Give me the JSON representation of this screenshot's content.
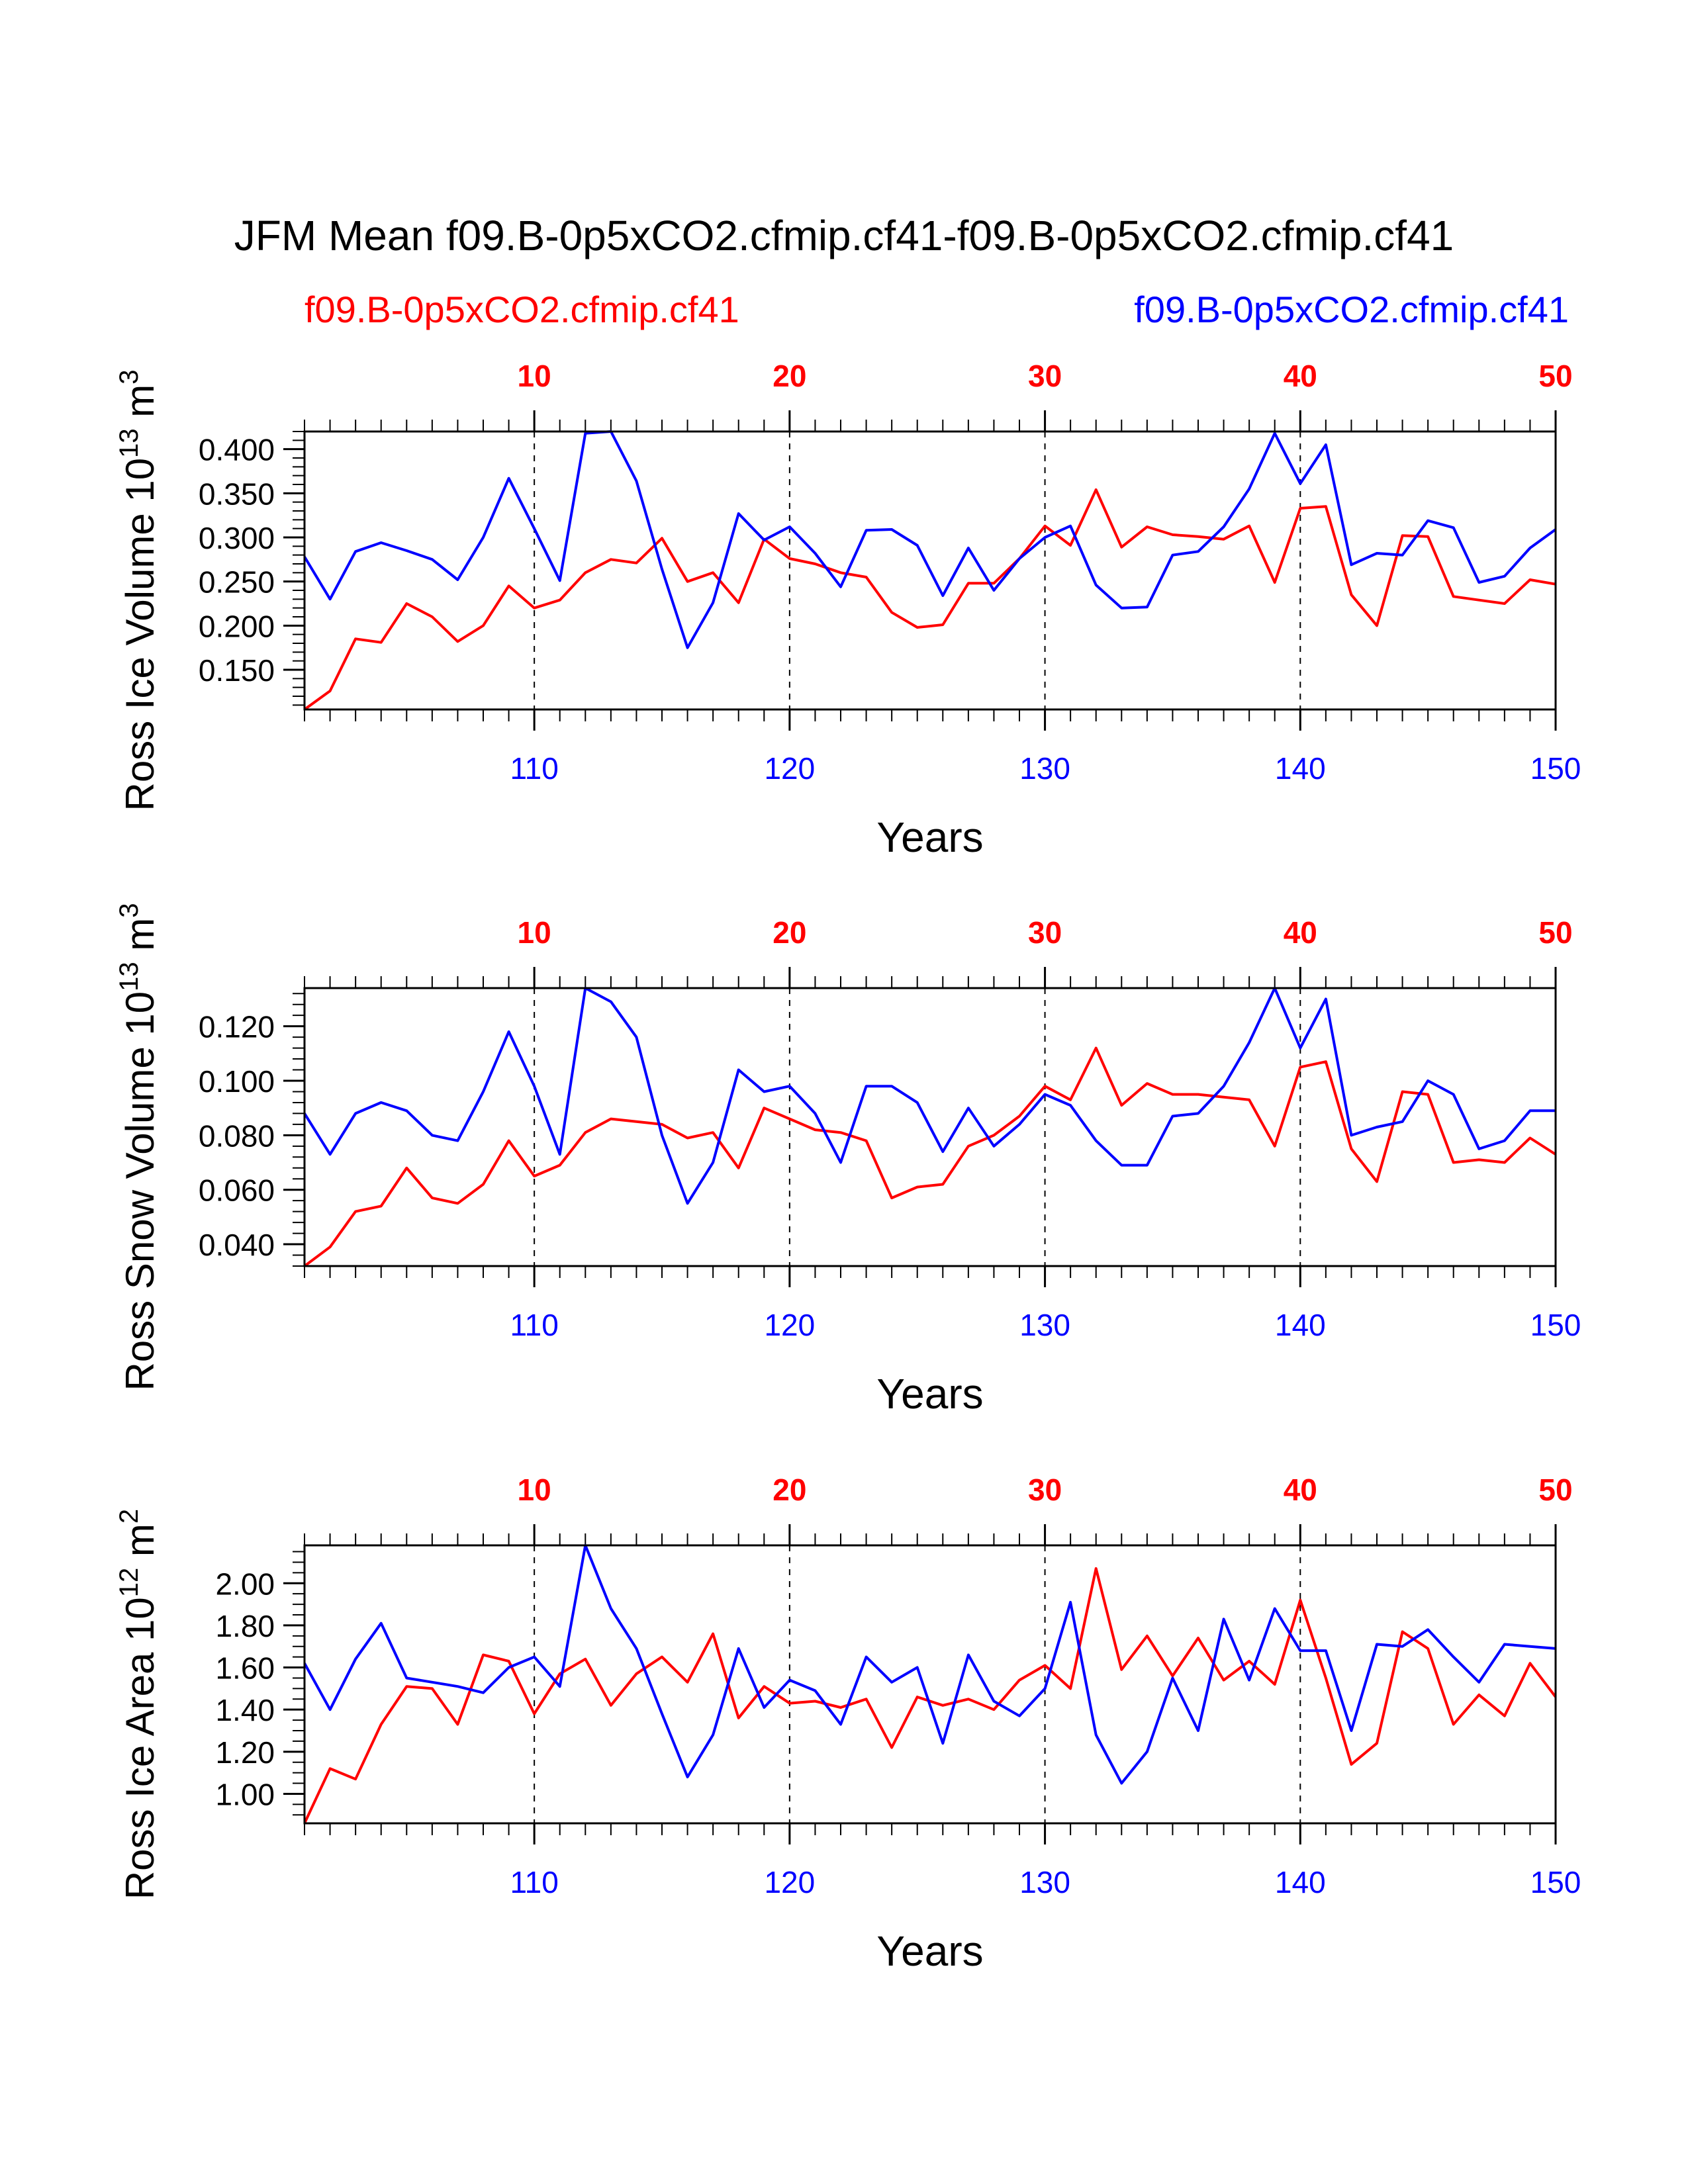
{
  "title": "JFM Mean f09.B-0p5xCO2.cfmip.cf41-f09.B-0p5xCO2.cfmip.cf41",
  "legend": {
    "left_label": "f09.B-0p5xCO2.cfmip.cf41",
    "left_color": "#ff0000",
    "right_label": "f09.B-0p5xCO2.cfmip.cf41",
    "right_color": "#0000ff"
  },
  "chart_data": [
    {
      "type": "line",
      "ylabel": "Ross Ice Volume 10",
      "ylabel_exp": "13",
      "ylabel_unit": " m",
      "ylabel_unit_exp": "3",
      "xlabel": "Years",
      "ylim": [
        0.105,
        0.42
      ],
      "yticks": [
        0.15,
        0.2,
        0.25,
        0.3,
        0.35,
        0.4
      ],
      "ytick_labels": [
        "0.150",
        "0.200",
        "0.250",
        "0.300",
        "0.350",
        "0.400"
      ],
      "yminor_step": 0.01,
      "xlim_bottom": [
        101,
        150
      ],
      "bottom_ticks": [
        110,
        120,
        130,
        140,
        150
      ],
      "bottom_tick_labels": [
        "110",
        "120",
        "130",
        "140",
        "150"
      ],
      "top_ticks": [
        10,
        20,
        30,
        40,
        50
      ],
      "top_tick_labels": [
        "10",
        "20",
        "30",
        "40",
        "50"
      ],
      "series": [
        {
          "name": "f09.B-0p5xCO2.cfmip.cf41",
          "axis": "top",
          "color": "#ff0000",
          "x": [
            1,
            2,
            3,
            4,
            5,
            6,
            7,
            8,
            9,
            10,
            11,
            12,
            13,
            14,
            15,
            16,
            17,
            18,
            19,
            20,
            21,
            22,
            23,
            24,
            25,
            26,
            27,
            28,
            29,
            30,
            31,
            32,
            33,
            34,
            35,
            36,
            37,
            38,
            39,
            40,
            41,
            42,
            43,
            44,
            45,
            46,
            47,
            48,
            49,
            50
          ],
          "values": [
            0.105,
            0.126,
            0.185,
            0.181,
            0.225,
            0.21,
            0.182,
            0.2,
            0.245,
            0.22,
            0.229,
            0.26,
            0.275,
            0.271,
            0.299,
            0.25,
            0.26,
            0.226,
            0.298,
            0.276,
            0.27,
            0.26,
            0.255,
            0.215,
            0.198,
            0.201,
            0.248,
            0.248,
            0.276,
            0.313,
            0.291,
            0.354,
            0.289,
            0.312,
            0.303,
            0.301,
            0.298,
            0.313,
            0.249,
            0.333,
            0.335,
            0.235,
            0.2,
            0.302,
            0.301,
            0.233,
            0.229,
            0.225,
            0.252,
            0.247
          ]
        },
        {
          "name": "f09.B-0p5xCO2.cfmip.cf41",
          "axis": "bottom",
          "color": "#0000ff",
          "x": [
            101,
            102,
            103,
            104,
            105,
            106,
            107,
            108,
            109,
            110,
            111,
            112,
            113,
            114,
            115,
            116,
            117,
            118,
            119,
            120,
            121,
            122,
            123,
            124,
            125,
            126,
            127,
            128,
            129,
            130,
            131,
            132,
            133,
            134,
            135,
            136,
            137,
            138,
            139,
            140,
            141,
            142,
            143,
            144,
            145,
            146,
            147,
            148,
            149,
            150
          ],
          "values": [
            0.278,
            0.23,
            0.284,
            0.294,
            0.285,
            0.275,
            0.252,
            0.3,
            0.367,
            0.31,
            0.251,
            0.418,
            0.42,
            0.364,
            0.264,
            0.175,
            0.226,
            0.327,
            0.297,
            0.312,
            0.282,
            0.244,
            0.308,
            0.309,
            0.291,
            0.234,
            0.288,
            0.24,
            0.276,
            0.3,
            0.313,
            0.246,
            0.22,
            0.221,
            0.28,
            0.284,
            0.312,
            0.355,
            0.418,
            0.361,
            0.405,
            0.269,
            0.282,
            0.28,
            0.319,
            0.311,
            0.249,
            0.256,
            0.288,
            0.309
          ]
        }
      ]
    },
    {
      "type": "line",
      "ylabel": "Ross Snow Volume 10",
      "ylabel_exp": "13",
      "ylabel_unit": " m",
      "ylabel_unit_exp": "3",
      "xlabel": "Years",
      "ylim": [
        0.032,
        0.134
      ],
      "yticks": [
        0.04,
        0.06,
        0.08,
        0.1,
        0.12
      ],
      "ytick_labels": [
        "0.040",
        "0.060",
        "0.080",
        "0.100",
        "0.120"
      ],
      "yminor_step": 0.004,
      "xlim_bottom": [
        101,
        150
      ],
      "bottom_ticks": [
        110,
        120,
        130,
        140,
        150
      ],
      "bottom_tick_labels": [
        "110",
        "120",
        "130",
        "140",
        "150"
      ],
      "top_ticks": [
        10,
        20,
        30,
        40,
        50
      ],
      "top_tick_labels": [
        "10",
        "20",
        "30",
        "40",
        "50"
      ],
      "series": [
        {
          "name": "f09.B-0p5xCO2.cfmip.cf41",
          "axis": "top",
          "color": "#ff0000",
          "x": [
            1,
            2,
            3,
            4,
            5,
            6,
            7,
            8,
            9,
            10,
            11,
            12,
            13,
            14,
            15,
            16,
            17,
            18,
            19,
            20,
            21,
            22,
            23,
            24,
            25,
            26,
            27,
            28,
            29,
            30,
            31,
            32,
            33,
            34,
            35,
            36,
            37,
            38,
            39,
            40,
            41,
            42,
            43,
            44,
            45,
            46,
            47,
            48,
            49,
            50
          ],
          "values": [
            0.032,
            0.039,
            0.052,
            0.054,
            0.068,
            0.057,
            0.055,
            0.062,
            0.078,
            0.065,
            0.069,
            0.081,
            0.086,
            0.085,
            0.084,
            0.079,
            0.081,
            0.068,
            0.09,
            0.086,
            0.082,
            0.081,
            0.078,
            0.057,
            0.061,
            0.062,
            0.076,
            0.08,
            0.087,
            0.098,
            0.093,
            0.112,
            0.091,
            0.099,
            0.095,
            0.095,
            0.094,
            0.093,
            0.076,
            0.105,
            0.107,
            0.075,
            0.063,
            0.096,
            0.095,
            0.07,
            0.071,
            0.07,
            0.079,
            0.073
          ]
        },
        {
          "name": "f09.B-0p5xCO2.cfmip.cf41",
          "axis": "bottom",
          "color": "#0000ff",
          "x": [
            101,
            102,
            103,
            104,
            105,
            106,
            107,
            108,
            109,
            110,
            111,
            112,
            113,
            114,
            115,
            116,
            117,
            118,
            119,
            120,
            121,
            122,
            123,
            124,
            125,
            126,
            127,
            128,
            129,
            130,
            131,
            132,
            133,
            134,
            135,
            136,
            137,
            138,
            139,
            140,
            141,
            142,
            143,
            144,
            145,
            146,
            147,
            148,
            149,
            150
          ],
          "values": [
            0.088,
            0.073,
            0.088,
            0.092,
            0.089,
            0.08,
            0.078,
            0.096,
            0.118,
            0.098,
            0.073,
            0.134,
            0.129,
            0.116,
            0.08,
            0.055,
            0.07,
            0.104,
            0.096,
            0.098,
            0.088,
            0.07,
            0.098,
            0.098,
            0.092,
            0.074,
            0.09,
            0.076,
            0.084,
            0.095,
            0.091,
            0.078,
            0.069,
            0.069,
            0.087,
            0.088,
            0.098,
            0.114,
            0.134,
            0.112,
            0.13,
            0.08,
            0.083,
            0.085,
            0.1,
            0.095,
            0.075,
            0.078,
            0.089,
            0.089
          ]
        }
      ]
    },
    {
      "type": "line",
      "ylabel": "Ross Ice Area 10",
      "ylabel_exp": "12",
      "ylabel_unit": " m",
      "ylabel_unit_exp": "2",
      "xlabel": "Years",
      "ylim": [
        0.86,
        2.18
      ],
      "yticks": [
        1.0,
        1.2,
        1.4,
        1.6,
        1.8,
        2.0
      ],
      "ytick_labels": [
        "1.00",
        "1.20",
        "1.40",
        "1.60",
        "1.80",
        "2.00"
      ],
      "yminor_step": 0.05,
      "xlim_bottom": [
        101,
        150
      ],
      "bottom_ticks": [
        110,
        120,
        130,
        140,
        150
      ],
      "bottom_tick_labels": [
        "110",
        "120",
        "130",
        "140",
        "150"
      ],
      "top_ticks": [
        10,
        20,
        30,
        40,
        50
      ],
      "top_tick_labels": [
        "10",
        "20",
        "30",
        "40",
        "50"
      ],
      "series": [
        {
          "name": "f09.B-0p5xCO2.cfmip.cf41",
          "axis": "top",
          "color": "#ff0000",
          "x": [
            1,
            2,
            3,
            4,
            5,
            6,
            7,
            8,
            9,
            10,
            11,
            12,
            13,
            14,
            15,
            16,
            17,
            18,
            19,
            20,
            21,
            22,
            23,
            24,
            25,
            26,
            27,
            28,
            29,
            30,
            31,
            32,
            33,
            34,
            35,
            36,
            37,
            38,
            39,
            40,
            41,
            42,
            43,
            44,
            45,
            46,
            47,
            48,
            49,
            50
          ],
          "values": [
            0.86,
            1.12,
            1.07,
            1.33,
            1.51,
            1.5,
            1.33,
            1.66,
            1.63,
            1.38,
            1.57,
            1.64,
            1.42,
            1.57,
            1.65,
            1.53,
            1.76,
            1.36,
            1.51,
            1.43,
            1.44,
            1.41,
            1.45,
            1.22,
            1.46,
            1.42,
            1.45,
            1.4,
            1.54,
            1.61,
            1.5,
            2.07,
            1.59,
            1.75,
            1.56,
            1.74,
            1.54,
            1.63,
            1.52,
            1.92,
            1.55,
            1.14,
            1.24,
            1.77,
            1.69,
            1.33,
            1.47,
            1.37,
            1.62,
            1.46
          ]
        },
        {
          "name": "f09.B-0p5xCO2.cfmip.cf41",
          "axis": "bottom",
          "color": "#0000ff",
          "x": [
            101,
            102,
            103,
            104,
            105,
            106,
            107,
            108,
            109,
            110,
            111,
            112,
            113,
            114,
            115,
            116,
            117,
            118,
            119,
            120,
            121,
            122,
            123,
            124,
            125,
            126,
            127,
            128,
            129,
            130,
            131,
            132,
            133,
            134,
            135,
            136,
            137,
            138,
            139,
            140,
            141,
            142,
            143,
            144,
            145,
            146,
            147,
            148,
            149,
            150
          ],
          "values": [
            1.62,
            1.4,
            1.64,
            1.81,
            1.55,
            1.53,
            1.51,
            1.48,
            1.6,
            1.65,
            1.51,
            2.18,
            1.88,
            1.69,
            1.38,
            1.08,
            1.28,
            1.69,
            1.41,
            1.54,
            1.49,
            1.33,
            1.65,
            1.53,
            1.6,
            1.24,
            1.66,
            1.44,
            1.37,
            1.5,
            1.91,
            1.28,
            1.05,
            1.2,
            1.55,
            1.3,
            1.83,
            1.54,
            1.88,
            1.68,
            1.68,
            1.3,
            1.71,
            1.7,
            1.78,
            1.65,
            1.53,
            1.71,
            1.7,
            1.69
          ]
        }
      ]
    }
  ]
}
